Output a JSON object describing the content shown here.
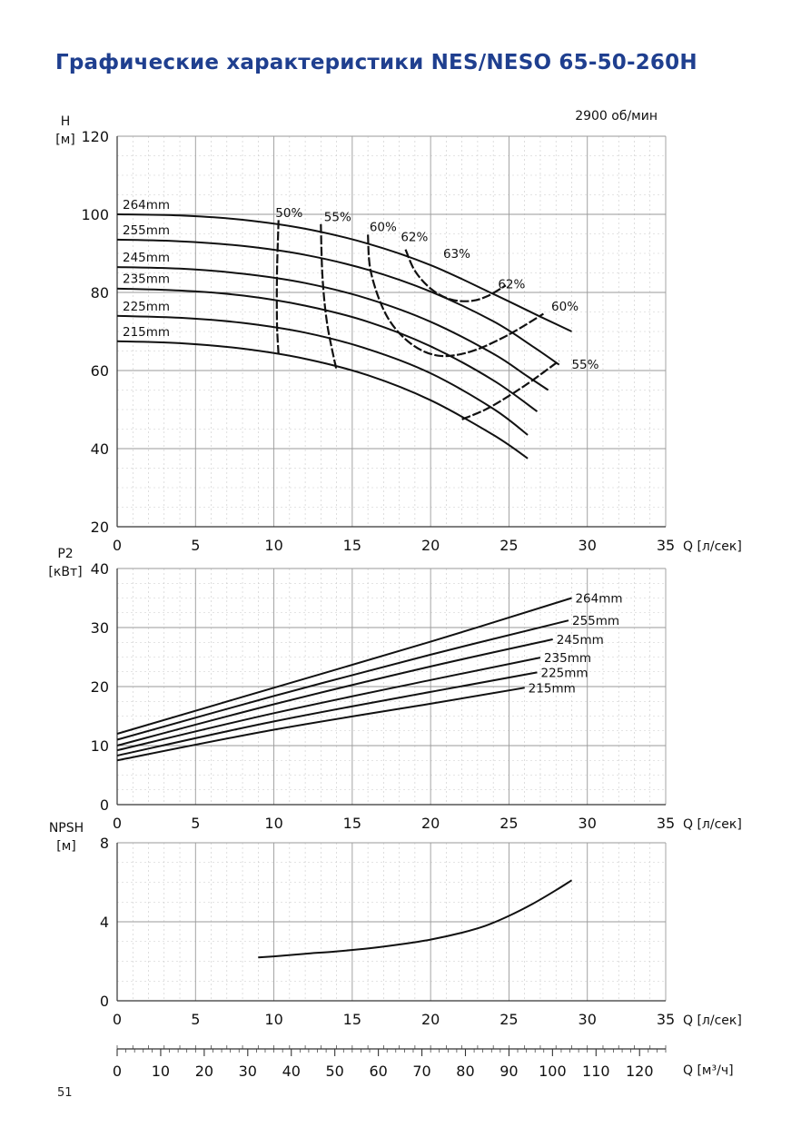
{
  "title": "Графические характеристики NES/NESO 65-50-260H",
  "page_number": "51",
  "chart_data": [
    {
      "type": "line",
      "name": "head",
      "annotation": "2900 об/мин",
      "ylabel": "H\n[м]",
      "xlabel": "Q [л/сек]",
      "xlim": [
        0,
        35
      ],
      "ylim": [
        20,
        120
      ],
      "xticks": [
        0,
        5,
        10,
        15,
        20,
        25,
        30,
        35
      ],
      "yticks": [
        20,
        40,
        60,
        80,
        100,
        120
      ],
      "grid": true,
      "series": [
        {
          "name": "264mm",
          "x": [
            0,
            4,
            8,
            12,
            16,
            20,
            24,
            27,
            29
          ],
          "y": [
            100,
            99.7,
            98.6,
            96.3,
            92.5,
            87,
            79.6,
            73.8,
            70
          ]
        },
        {
          "name": "255mm",
          "x": [
            0,
            4,
            8,
            12,
            16,
            20,
            24,
            26.5,
            28.2
          ],
          "y": [
            93.5,
            93.1,
            91.9,
            89.6,
            85.8,
            80.2,
            72.6,
            66.2,
            61.5
          ]
        },
        {
          "name": "245mm",
          "x": [
            0,
            4,
            8,
            12,
            16,
            20,
            24,
            26,
            27.5
          ],
          "y": [
            86.5,
            86.1,
            84.8,
            82.4,
            78.4,
            72.5,
            64.3,
            59,
            55
          ]
        },
        {
          "name": "235mm",
          "x": [
            0,
            4,
            8,
            12,
            16,
            20,
            24,
            26.8
          ],
          "y": [
            81,
            80.5,
            79.2,
            76.6,
            72.5,
            66.2,
            57.5,
            49.5
          ]
        },
        {
          "name": "225mm",
          "x": [
            0,
            4,
            8,
            12,
            16,
            20,
            24,
            26.2
          ],
          "y": [
            74,
            73.5,
            72.2,
            69.7,
            65.5,
            59.3,
            50.2,
            43.5
          ]
        },
        {
          "name": "215mm",
          "x": [
            0,
            4,
            8,
            12,
            16,
            20,
            24,
            26.2
          ],
          "y": [
            67.5,
            67,
            65.6,
            63,
            58.8,
            52.4,
            43.5,
            37.5
          ]
        }
      ],
      "efficiency_curves": [
        {
          "label": "50%",
          "x": [
            10.3,
            10.2,
            10.2,
            10.3
          ],
          "y": [
            98.5,
            85,
            72,
            64
          ]
        },
        {
          "label": "55%",
          "x": [
            13,
            13.1,
            13.4,
            14
          ],
          "y": [
            97.5,
            84,
            72,
            60
          ]
        },
        {
          "label": "60%",
          "x": [
            16,
            16.2,
            17.2,
            18.7,
            20.5,
            22.5,
            24.8,
            27.2
          ],
          "y": [
            94.8,
            85,
            74,
            67,
            63.8,
            64.8,
            68.8,
            74.5
          ]
        },
        {
          "label": "62%",
          "x": [
            18.4,
            19,
            20,
            21.2,
            22.5,
            23.6,
            24.8
          ],
          "y": [
            91,
            85.5,
            81,
            78.3,
            77.8,
            79,
            81.8
          ]
        },
        {
          "label": "55%",
          "x": [
            22,
            23.5,
            25,
            26.5,
            28.2
          ],
          "y": [
            47.5,
            50,
            53.5,
            57.5,
            62.5
          ]
        }
      ],
      "efficiency_labels": [
        {
          "text": "50%",
          "x": 10.1,
          "y": 99.3
        },
        {
          "text": "55%",
          "x": 13.2,
          "y": 98.2
        },
        {
          "text": "60%",
          "x": 16.1,
          "y": 95.7
        },
        {
          "text": "62%",
          "x": 18.1,
          "y": 93.1
        },
        {
          "text": "63%",
          "x": 20.8,
          "y": 88.8
        },
        {
          "text": "62%",
          "x": 24.3,
          "y": 81.1
        },
        {
          "text": "60%",
          "x": 27.7,
          "y": 75.4
        },
        {
          "text": "55%",
          "x": 29,
          "y": 60.5
        }
      ]
    },
    {
      "type": "line",
      "name": "power",
      "ylabel": "P2\n[кВт]",
      "xlabel": "Q [л/сек]",
      "xlim": [
        0,
        35
      ],
      "ylim": [
        0,
        40
      ],
      "xticks": [
        0,
        5,
        10,
        15,
        20,
        25,
        30,
        35
      ],
      "yticks": [
        0,
        10,
        20,
        30,
        40
      ],
      "grid": true,
      "series": [
        {
          "name": "264mm",
          "x": [
            0,
            10,
            20,
            29
          ],
          "y": [
            12,
            19.8,
            27.6,
            35
          ]
        },
        {
          "name": "255mm",
          "x": [
            0,
            10,
            20,
            28.8
          ],
          "y": [
            11,
            18.4,
            25.4,
            31.2
          ]
        },
        {
          "name": "245mm",
          "x": [
            0,
            10,
            20,
            27.8
          ],
          "y": [
            10,
            17,
            23.4,
            28
          ]
        },
        {
          "name": "235mm",
          "x": [
            0,
            10,
            20,
            27
          ],
          "y": [
            9.2,
            15.5,
            21.1,
            24.9
          ]
        },
        {
          "name": "225mm",
          "x": [
            0,
            10,
            20,
            26.8
          ],
          "y": [
            8.3,
            14.1,
            19.1,
            22.4
          ]
        },
        {
          "name": "215mm",
          "x": [
            0,
            10,
            20,
            26
          ],
          "y": [
            7.5,
            12.7,
            17.1,
            19.8
          ]
        }
      ]
    },
    {
      "type": "line",
      "name": "npsh",
      "ylabel": "NPSH\n[м]",
      "xlabel": "Q [л/сек]",
      "xlim": [
        0,
        35
      ],
      "ylim": [
        0,
        8
      ],
      "xticks": [
        0,
        5,
        10,
        15,
        20,
        25,
        30,
        35
      ],
      "yticks": [
        0,
        4,
        8
      ],
      "grid": true,
      "series": [
        {
          "name": "NPSH",
          "x": [
            9,
            10,
            12,
            14,
            16,
            18,
            20,
            22,
            23.5,
            25,
            26.5,
            28,
            29
          ],
          "y": [
            2.2,
            2.25,
            2.38,
            2.5,
            2.65,
            2.85,
            3.1,
            3.45,
            3.8,
            4.3,
            4.9,
            5.6,
            6.1
          ]
        }
      ]
    }
  ],
  "secondary_axis": {
    "xlabel": "Q [м³/ч]",
    "range": [
      0,
      126
    ],
    "ticks": [
      0,
      10,
      20,
      30,
      40,
      50,
      60,
      70,
      80,
      90,
      100,
      110,
      120
    ]
  }
}
